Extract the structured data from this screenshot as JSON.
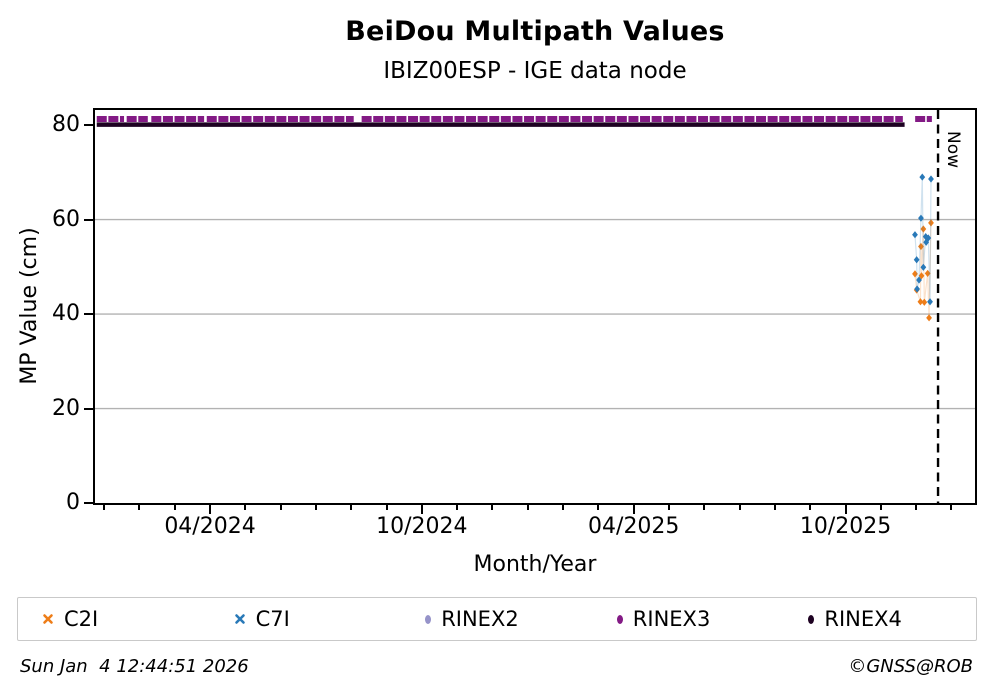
{
  "header": {
    "title": "BeiDou Multipath Values",
    "subtitle": "IBIZ00ESP - IGE data node"
  },
  "footer": {
    "timestamp": "Sun Jan  4 12:44:51 2026",
    "credit": "©GNSS@ROB"
  },
  "colors": {
    "c2i_orange": "#ee7d18",
    "c7i_blue": "#2979b8",
    "rinex2_lavender": "#9693c9",
    "rinex3_purple": "#831a85",
    "rinex4_darkpurple": "#1e0222",
    "gridline_gray": "#b2b2b2",
    "now_line_black": "#000000",
    "legend_border_gray": "#c9c9c9"
  },
  "legend": {
    "items": [
      {
        "label": "C2I",
        "color": "#ee7d18",
        "marker": "x"
      },
      {
        "label": "C7I",
        "color": "#2979b8",
        "marker": "x"
      },
      {
        "label": "RINEX2",
        "color": "#9693c9",
        "marker": "ellipse"
      },
      {
        "label": "RINEX3",
        "color": "#831a85",
        "marker": "ellipse"
      },
      {
        "label": "RINEX4",
        "color": "#1e0222",
        "marker": "ellipse"
      }
    ]
  },
  "chart_data": {
    "type": "scatter",
    "title": "BeiDou Multipath Values",
    "subtitle": "IBIZ00ESP - IGE data node",
    "xlabel": "Month/Year",
    "ylabel": "MP Value (cm)",
    "y_axis": {
      "ticks": [
        0,
        20,
        40,
        60,
        80
      ],
      "range": [
        0,
        83.2
      ],
      "grid_values": [
        20,
        40,
        60
      ],
      "grid_on": true
    },
    "x_axis": {
      "start_date_approx": "2023-12-22",
      "end_date_approx": "2026-01-20",
      "major_ticks": [
        {
          "label": "04/2024",
          "f": 0.1307
        },
        {
          "label": "10/2024",
          "f": 0.3714
        },
        {
          "label": "04/2025",
          "f": 0.6122
        },
        {
          "label": "10/2025",
          "f": 0.8529
        }
      ],
      "minor_tick_fs": [
        0.0103,
        0.0505,
        0.0906,
        0.1708,
        0.211,
        0.2511,
        0.2912,
        0.3313,
        0.4116,
        0.4517,
        0.4918,
        0.5319,
        0.572,
        0.6523,
        0.6924,
        0.7325,
        0.7726,
        0.8128,
        0.893,
        0.9331,
        0.9732
      ]
    },
    "now_marker": {
      "label": "Now",
      "f": 0.958,
      "date": "2026-01-04"
    },
    "series": [
      {
        "name": "C2I",
        "color": "#ee7d18",
        "marker": "diamond-x",
        "points": [
          {
            "f": 0.9318,
            "v": 48.5,
            "date": "2025-12-15"
          },
          {
            "f": 0.9337,
            "v": 45.1,
            "date": "2025-12-16"
          },
          {
            "f": 0.938,
            "v": 42.6,
            "date": "2025-12-19"
          },
          {
            "f": 0.9386,
            "v": 54.3,
            "date": "2025-12-20"
          },
          {
            "f": 0.9392,
            "v": 48.1,
            "date": "2025-12-21"
          },
          {
            "f": 0.9413,
            "v": 58.0,
            "date": "2025-12-22"
          },
          {
            "f": 0.9424,
            "v": 42.5,
            "date": "2025-12-23"
          },
          {
            "f": 0.9462,
            "v": 48.6,
            "date": "2025-12-26"
          },
          {
            "f": 0.9478,
            "v": 39.2,
            "date": "2025-12-27"
          },
          {
            "f": 0.95,
            "v": 59.3,
            "date": "2025-12-29"
          }
        ]
      },
      {
        "name": "C7I",
        "color": "#2979b8",
        "marker": "diamond-x",
        "points": [
          {
            "f": 0.9318,
            "v": 56.8,
            "date": "2025-12-15"
          },
          {
            "f": 0.9337,
            "v": 51.5,
            "date": "2025-12-16"
          },
          {
            "f": 0.9342,
            "v": 45.3,
            "date": "2025-12-17"
          },
          {
            "f": 0.9364,
            "v": 47.2,
            "date": "2025-12-18"
          },
          {
            "f": 0.9386,
            "v": 60.3,
            "date": "2025-12-20"
          },
          {
            "f": 0.9401,
            "v": 69.0,
            "date": "2025-12-21"
          },
          {
            "f": 0.9413,
            "v": 49.9,
            "date": "2025-12-22"
          },
          {
            "f": 0.944,
            "v": 56.4,
            "date": "2025-12-24"
          },
          {
            "f": 0.9445,
            "v": 55.2,
            "date": "2025-12-25"
          },
          {
            "f": 0.9469,
            "v": 56.1,
            "date": "2025-12-27"
          },
          {
            "f": 0.9489,
            "v": 42.6,
            "date": "2025-12-28"
          },
          {
            "f": 0.95,
            "v": 68.6,
            "date": "2025-12-29"
          }
        ]
      },
      {
        "name": "RINEX2",
        "color": "#9693c9",
        "marker": "ellipse",
        "points": []
      },
      {
        "name": "RINEX3",
        "color": "#831a85",
        "marker": "line",
        "value": 81.3,
        "segments": [
          [
            0.002,
            0.033
          ],
          [
            0.036,
            0.06
          ],
          [
            0.064,
            0.124
          ],
          [
            0.127,
            0.294
          ],
          [
            0.303,
            0.918
          ],
          [
            0.932,
            0.951
          ]
        ]
      },
      {
        "name": "RINEX4",
        "color": "#1e0222",
        "marker": "line",
        "value": 80.1,
        "segments": [
          [
            0.002,
            0.92
          ]
        ]
      }
    ]
  }
}
